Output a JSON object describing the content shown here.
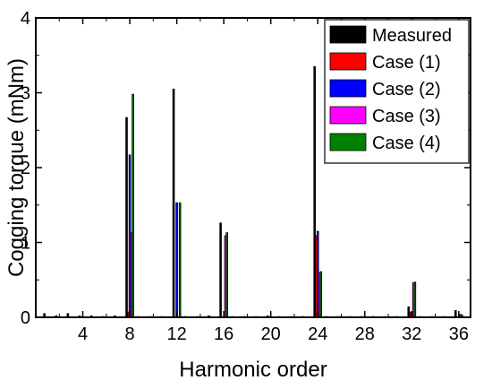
{
  "chart_data": {
    "type": "bar",
    "xlabel": "Harmonic order",
    "ylabel": "Cogging torque (mNm)",
    "xlim": [
      0,
      37
    ],
    "ylim": [
      0,
      4
    ],
    "x_ticks": [
      4,
      8,
      12,
      16,
      20,
      24,
      28,
      32,
      36
    ],
    "y_ticks": [
      0,
      1,
      2,
      3,
      4
    ],
    "grid": false,
    "legend_position": "top-right",
    "x": [
      1,
      2,
      3,
      4,
      5,
      6,
      7,
      8,
      9,
      10,
      11,
      12,
      13,
      14,
      15,
      16,
      17,
      18,
      19,
      20,
      21,
      22,
      23,
      24,
      25,
      26,
      27,
      28,
      29,
      30,
      31,
      32,
      33,
      34,
      35,
      36
    ],
    "series": [
      {
        "name": "Measured",
        "color": "#000000",
        "values": [
          0.05,
          0.02,
          0.05,
          0.02,
          0.02,
          0.01,
          0.02,
          2.67,
          0.01,
          0.01,
          0.01,
          3.05,
          0.01,
          0.01,
          0.02,
          1.26,
          0.01,
          0.01,
          0.01,
          0.02,
          0.01,
          0.01,
          0.01,
          3.35,
          0.01,
          0.01,
          0.01,
          0.01,
          0.01,
          0.01,
          0.01,
          0.14,
          0.01,
          0.01,
          0.01,
          0.09
        ]
      },
      {
        "name": "Case (1)",
        "color": "#ff0000",
        "values": [
          0,
          0,
          0,
          0,
          0,
          0,
          0,
          0.07,
          0,
          0,
          0,
          0,
          0,
          0,
          0,
          0,
          0,
          0,
          0,
          0,
          0,
          0,
          0,
          1.09,
          0,
          0,
          0,
          0,
          0,
          0,
          0,
          0.07,
          0,
          0,
          0,
          0
        ]
      },
      {
        "name": "Case (2)",
        "color": "#0000ff",
        "values": [
          0,
          0,
          0,
          0,
          0,
          0,
          0,
          2.17,
          0,
          0,
          0,
          1.53,
          0,
          0,
          0,
          0,
          0,
          0,
          0,
          0,
          0,
          0,
          0,
          1.15,
          0,
          0,
          0,
          0,
          0,
          0,
          0,
          0,
          0,
          0,
          0,
          0
        ]
      },
      {
        "name": "Case (3)",
        "color": "#ff00ff",
        "values": [
          0,
          0,
          0,
          0,
          0,
          0,
          0,
          1.13,
          0,
          0,
          0,
          0,
          0,
          0,
          0,
          1.09,
          0,
          0,
          0,
          0,
          0,
          0,
          0,
          0.59,
          0,
          0,
          0,
          0,
          0,
          0,
          0,
          0.46,
          0,
          0,
          0,
          0.04
        ]
      },
      {
        "name": "Case (4)",
        "color": "#008000",
        "values": [
          0,
          0,
          0,
          0,
          0,
          0,
          0,
          2.98,
          0,
          0,
          0,
          1.53,
          0,
          0,
          0,
          1.13,
          0,
          0,
          0,
          0,
          0,
          0,
          0,
          0.61,
          0,
          0,
          0,
          0,
          0,
          0,
          0,
          0.47,
          0,
          0,
          0,
          0.03
        ]
      }
    ]
  }
}
